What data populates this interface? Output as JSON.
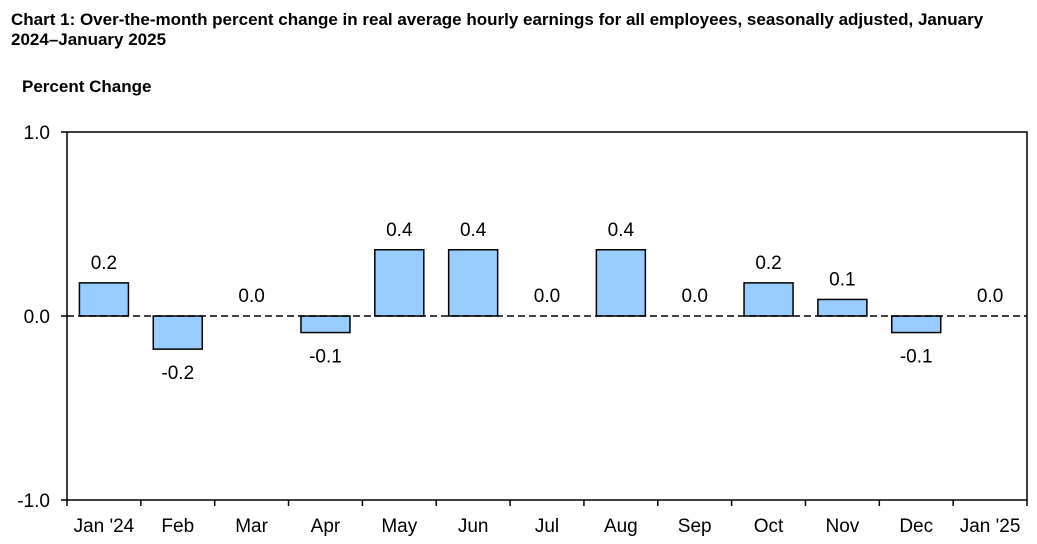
{
  "header": {
    "title": "Chart 1: Over-the-month percent change in real average hourly earnings for all employees, seasonally adjusted, January 2024–January 2025",
    "y_axis_label": "Percent Change"
  },
  "colors": {
    "bar_fill": "#99ccff",
    "bar_stroke": "#000000",
    "zero_line": "#000000"
  },
  "chart_data": {
    "type": "bar",
    "title": "Chart 1: Over-the-month percent change in real average hourly earnings for all employees, seasonally adjusted, January 2024–January 2025",
    "ylabel": "Percent Change",
    "xlabel": "",
    "ylim": [
      -1.0,
      1.0
    ],
    "yticks": [
      -1.0,
      0.0,
      1.0
    ],
    "ytick_labels": [
      "-1.0",
      "0.0",
      "1.0"
    ],
    "grid": false,
    "categories": [
      "Jan '24",
      "Feb",
      "Mar",
      "Apr",
      "May",
      "Jun",
      "Jul",
      "Aug",
      "Sep",
      "Oct",
      "Nov",
      "Dec",
      "Jan '25"
    ],
    "values": [
      0.18,
      -0.18,
      0.0,
      -0.09,
      0.36,
      0.36,
      0.0,
      0.36,
      0.0,
      0.18,
      0.09,
      -0.09,
      0.0
    ],
    "data_labels": [
      "0.2",
      "-0.2",
      "0.0",
      "-0.1",
      "0.4",
      "0.4",
      "0.0",
      "0.4",
      "0.0",
      "0.2",
      "0.1",
      "-0.1",
      "0.0"
    ]
  }
}
